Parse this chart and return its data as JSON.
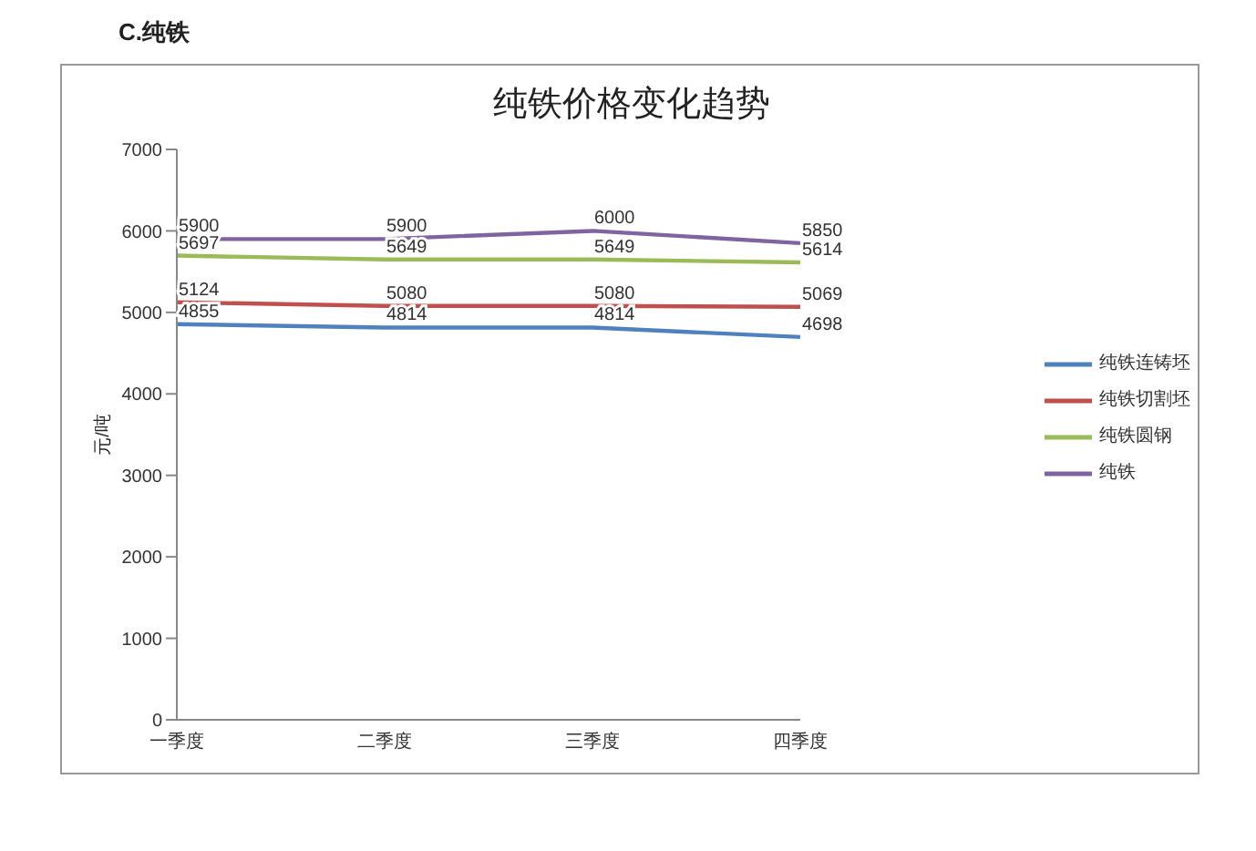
{
  "chart_data": {
    "type": "line",
    "title": "纯铁价格变化趋势",
    "annotations": [
      "C.纯铁"
    ],
    "ylabel": "元/吨",
    "categories": [
      "一季度",
      "二季度",
      "三季度",
      "四季度"
    ],
    "series": [
      {
        "name": "纯铁连铸坯",
        "color": "#4f81bd",
        "values": [
          4855,
          4814,
          4814,
          4698
        ]
      },
      {
        "name": "纯铁切割坯",
        "color": "#c0504d",
        "values": [
          5124,
          5080,
          5080,
          5069
        ]
      },
      {
        "name": "纯铁圆钢",
        "color": "#9bbb59",
        "values": [
          5697,
          5649,
          5649,
          5614
        ]
      },
      {
        "name": "纯铁",
        "color": "#8064a2",
        "values": [
          5900,
          5900,
          6000,
          5850
        ]
      }
    ],
    "ylim": [
      0,
      7000
    ],
    "yticks": [
      0,
      1000,
      2000,
      3000,
      4000,
      5000,
      6000,
      7000
    ],
    "grid": false,
    "legend": "right",
    "marker": "none",
    "data_labels": true
  }
}
